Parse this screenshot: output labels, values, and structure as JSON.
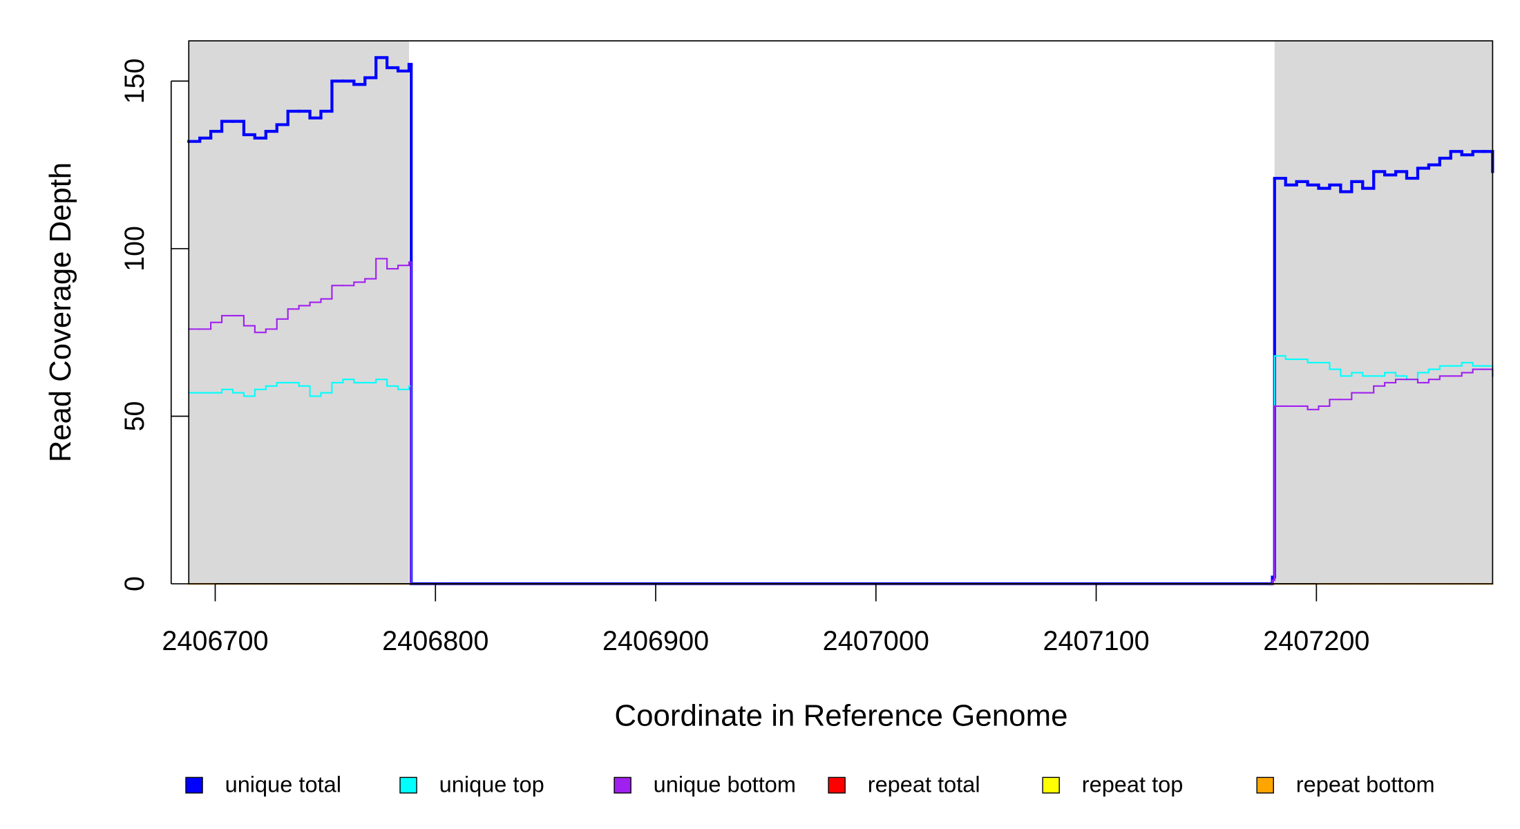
{
  "chart_data": {
    "type": "step-line",
    "x_label": "Coordinate in Reference Genome",
    "y_label": "Read Coverage Depth",
    "xlim": [
      2406688,
      2407280
    ],
    "ylim": [
      0,
      162
    ],
    "xticks": [
      2406700,
      2406800,
      2406900,
      2407000,
      2407100,
      2407200
    ],
    "yticks": [
      0,
      50,
      100,
      150
    ],
    "shaded_regions": [
      [
        2406688,
        2406788
      ],
      [
        2407181,
        2407280
      ]
    ],
    "shade_color": "#d9d9d9",
    "legend": "bottom",
    "x": [
      2406688,
      2406693,
      2406698,
      2406703,
      2406708,
      2406713,
      2406718,
      2406723,
      2406728,
      2406733,
      2406738,
      2406743,
      2406748,
      2406753,
      2406758,
      2406763,
      2406768,
      2406773,
      2406778,
      2406783,
      2406788,
      2406789,
      2407179,
      2407180,
      2407181,
      2407186,
      2407191,
      2407196,
      2407201,
      2407206,
      2407211,
      2407216,
      2407221,
      2407226,
      2407231,
      2407236,
      2407241,
      2407246,
      2407251,
      2407256,
      2407261,
      2407266,
      2407271,
      2407276,
      2407280
    ],
    "series": [
      {
        "name": "unique total",
        "color": "#0000ff",
        "width": 3,
        "values": [
          132,
          133,
          135,
          138,
          138,
          134,
          133,
          135,
          137,
          141,
          141,
          139,
          141,
          150,
          150,
          149,
          151,
          157,
          154,
          153,
          155,
          0,
          0,
          2,
          121,
          119,
          120,
          119,
          118,
          119,
          117,
          120,
          118,
          123,
          122,
          123,
          121,
          124,
          125,
          127,
          129,
          128,
          129,
          129,
          123
        ]
      },
      {
        "name": "unique top",
        "color": "#00ffff",
        "width": 1.5,
        "values": [
          57,
          57,
          57,
          58,
          57,
          56,
          58,
          59,
          60,
          60,
          59,
          56,
          57,
          60,
          61,
          60,
          60,
          61,
          59,
          58,
          59,
          0,
          0,
          1,
          68,
          67,
          67,
          66,
          66,
          64,
          62,
          63,
          62,
          62,
          63,
          62,
          61,
          63,
          64,
          65,
          65,
          66,
          65,
          65,
          62
        ]
      },
      {
        "name": "unique bottom",
        "color": "#a020f0",
        "width": 1.5,
        "values": [
          76,
          76,
          78,
          80,
          80,
          77,
          75,
          76,
          79,
          82,
          83,
          84,
          85,
          89,
          89,
          90,
          91,
          97,
          94,
          95,
          96,
          0,
          0,
          1,
          53,
          53,
          53,
          52,
          53,
          55,
          55,
          57,
          57,
          59,
          60,
          61,
          61,
          60,
          61,
          62,
          62,
          63,
          64,
          64,
          62
        ]
      },
      {
        "name": "repeat total",
        "color": "#ff0000",
        "width": 1.5,
        "values": [
          0,
          0,
          0,
          0,
          0,
          0,
          0,
          0,
          0,
          0,
          0,
          0,
          0,
          0,
          0,
          0,
          0,
          0,
          0,
          0,
          0,
          0,
          0,
          0,
          0,
          0,
          0,
          0,
          0,
          0,
          0,
          0,
          0,
          0,
          0,
          0,
          0,
          0,
          0,
          0,
          0,
          0,
          0,
          0,
          0
        ]
      },
      {
        "name": "repeat top",
        "color": "#ffff00",
        "width": 1.5,
        "values": [
          0,
          0,
          0,
          0,
          0,
          0,
          0,
          0,
          0,
          0,
          0,
          0,
          0,
          0,
          0,
          0,
          0,
          0,
          0,
          0,
          0,
          0,
          0,
          0,
          0,
          0,
          0,
          0,
          0,
          0,
          0,
          0,
          0,
          0,
          0,
          0,
          0,
          0,
          0,
          0,
          0,
          0,
          0,
          0,
          0
        ]
      },
      {
        "name": "repeat bottom",
        "color": "#ffa500",
        "width": 1.5,
        "values": [
          0,
          0,
          0,
          0,
          0,
          0,
          0,
          0,
          0,
          0,
          0,
          0,
          0,
          0,
          0,
          0,
          0,
          0,
          0,
          0,
          0,
          0,
          0,
          0,
          0,
          0,
          0,
          0,
          0,
          0,
          0,
          0,
          0,
          0,
          0,
          0,
          0,
          0,
          0,
          0,
          0,
          0,
          0,
          0,
          0
        ]
      }
    ]
  }
}
